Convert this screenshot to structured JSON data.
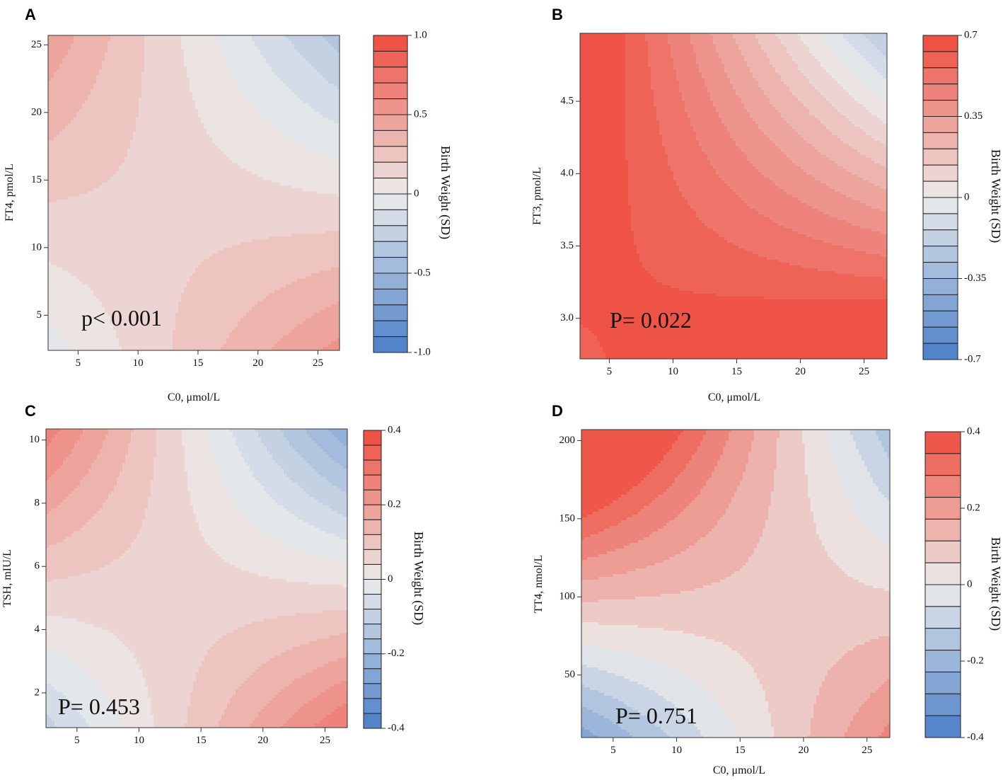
{
  "colors": {
    "low": "#4a7fc8",
    "mid": "#ececec",
    "high": "#ee4b3c"
  },
  "chart_data": [
    {
      "id": "A",
      "type": "heatmap",
      "panel_label": "A",
      "xlabel": "C0, μmol/L",
      "ylabel": "FT4, pmol/L",
      "colorbar_label": "Birth Weight (SD)",
      "annotation": "p< 0.001",
      "xlim": [
        2.5,
        26.8
      ],
      "ylim": [
        2.4,
        25.7
      ],
      "xticks": [
        5,
        10,
        15,
        20,
        25
      ],
      "xtick_labels": [
        "5",
        "10",
        "15",
        "20",
        "25"
      ],
      "yticks": [
        5,
        10,
        15,
        20,
        25
      ],
      "ytick_labels": [
        "5",
        "10",
        "15",
        "20",
        "25"
      ],
      "clim": [
        -1.0,
        1.0
      ],
      "colorbar_ticks": [
        1.0,
        0.5,
        0,
        -0.5,
        -1.0
      ],
      "colorbar_tick_labels": [
        "1.0",
        "0.5",
        "0",
        "-0.5",
        "-1.0"
      ],
      "colorbar_levels": 20,
      "surface": {
        "saddle_x": 23.5,
        "saddle_y": 12.0,
        "center_value": 0.17,
        "interaction": -0.0025,
        "y_slope": -0.03
      }
    },
    {
      "id": "B",
      "type": "heatmap",
      "panel_label": "B",
      "xlabel": "C0, μmol/L",
      "ylabel": "FT3, pmol/L",
      "colorbar_label": "Birth Weight (SD)",
      "annotation": "P= 0.022",
      "xlim": [
        2.7,
        26.8
      ],
      "ylim": [
        2.72,
        4.97
      ],
      "xticks": [
        5,
        10,
        15,
        20,
        25
      ],
      "xtick_labels": [
        "5",
        "10",
        "15",
        "20",
        "25"
      ],
      "yticks": [
        3.0,
        3.5,
        4.0,
        4.5
      ],
      "ytick_labels": [
        "3.0",
        "3.5",
        "4.0",
        "4.5"
      ],
      "clim": [
        -0.7,
        0.7
      ],
      "colorbar_ticks": [
        0.7,
        0.35,
        0,
        -0.35,
        -0.7
      ],
      "colorbar_tick_labels": [
        "0.7",
        "0.35",
        "0",
        "-0.35",
        "-0.7"
      ],
      "colorbar_levels": 20,
      "surface": {
        "saddle_x": 40.0,
        "saddle_y": 3.1,
        "center_value": 0.64,
        "interaction": -0.022,
        "y_slope": -0.75
      }
    },
    {
      "id": "C",
      "type": "heatmap",
      "panel_label": "C",
      "xlabel": "",
      "ylabel": "TSH, mIU/L",
      "colorbar_label": "Birth Weight (SD)",
      "annotation": "P= 0.453",
      "xlim": [
        2.5,
        26.8
      ],
      "ylim": [
        0.9,
        10.35
      ],
      "xticks": [
        5,
        10,
        15,
        20,
        25
      ],
      "xtick_labels": [
        "5",
        "10",
        "15",
        "20",
        "25"
      ],
      "yticks": [
        2,
        4,
        6,
        8,
        10
      ],
      "ytick_labels": [
        "2",
        "4",
        "6",
        "8",
        "10"
      ],
      "clim": [
        -0.4,
        0.4
      ],
      "colorbar_ticks": [
        0.4,
        0.2,
        0,
        -0.2,
        -0.4
      ],
      "colorbar_tick_labels": [
        "0.4",
        "0.2",
        "0",
        "-0.2",
        "-0.4"
      ],
      "colorbar_levels": 20,
      "surface": {
        "saddle_x": 23.0,
        "saddle_y": 5.0,
        "center_value": 0.06,
        "interaction": -0.0038,
        "y_slope": -0.04
      }
    },
    {
      "id": "D",
      "type": "heatmap",
      "panel_label": "D",
      "xlabel": "C0, μmol/L",
      "ylabel": "TT4, nmol/L",
      "colorbar_label": "Birth Weight (SD)",
      "annotation": "P= 0.751",
      "xlim": [
        2.5,
        26.8
      ],
      "ylim": [
        10,
        207
      ],
      "xticks": [
        5,
        10,
        15,
        20,
        25
      ],
      "xtick_labels": [
        "5",
        "10",
        "15",
        "20",
        "25"
      ],
      "yticks": [
        50,
        100,
        150,
        200
      ],
      "ytick_labels": [
        "50",
        "100",
        "150",
        "200"
      ],
      "clim": [
        -0.4,
        0.4
      ],
      "colorbar_ticks": [
        0.4,
        0.2,
        0,
        -0.2,
        -0.4
      ],
      "colorbar_tick_labels": [
        "0.4",
        "0.2",
        "0",
        "-0.2",
        "-0.4"
      ],
      "colorbar_levels": 14,
      "surface": {
        "saddle_x": 19.0,
        "saddle_y": 90.0,
        "center_value": 0.085,
        "interaction": -0.00026,
        "y_slope": 0.0
      }
    }
  ]
}
